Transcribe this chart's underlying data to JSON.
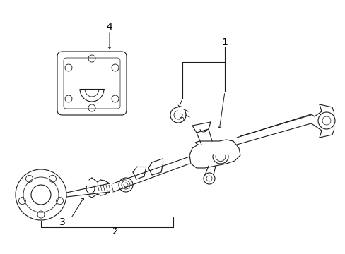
{
  "background_color": "#ffffff",
  "line_color": "#1a1a1a",
  "fig_width": 4.89,
  "fig_height": 3.6,
  "dpi": 100,
  "label_fontsize": 10
}
